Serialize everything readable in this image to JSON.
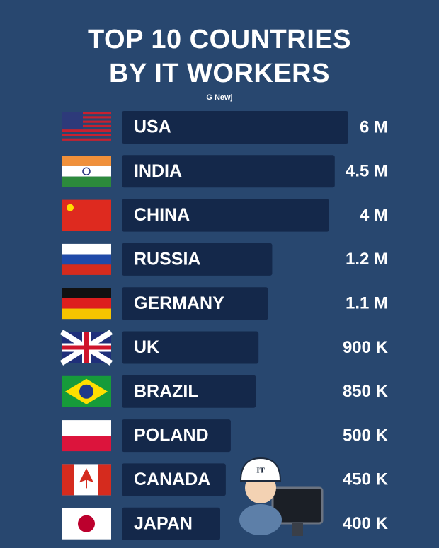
{
  "chart_data": {
    "type": "bar",
    "orientation": "horizontal",
    "title": "TOP 10 COUNTRIES\nBY IT WORKERS",
    "source": "G Newj",
    "categories": [
      "USA",
      "INDIA",
      "CHINA",
      "RUSSIA",
      "GERMANY",
      "UK",
      "BRAZIL",
      "POLAND",
      "CANADA",
      "JAPAN"
    ],
    "values": [
      6000000,
      4500000,
      4000000,
      1200000,
      1100000,
      900000,
      850000,
      500000,
      450000,
      400000
    ],
    "value_labels": [
      "6 M",
      "4.5 M",
      "4 M",
      "1.2 M",
      "1.1 M",
      "900 K",
      "850 K",
      "500 K",
      "450 K",
      "400 K"
    ],
    "color": "#14284a",
    "log_scale": true,
    "xlim": [
      50000,
      6000000
    ],
    "illustration_text": "IT"
  }
}
